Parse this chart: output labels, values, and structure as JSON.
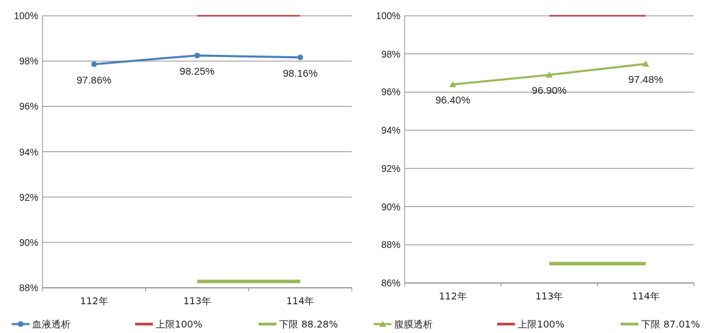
{
  "chart_data": [
    {
      "type": "line",
      "categories": [
        "112年",
        "113年",
        "114年"
      ],
      "ylim": [
        88,
        100
      ],
      "yticks": [
        {
          "value": 88,
          "label": "88%"
        },
        {
          "value": 90,
          "label": "90%"
        },
        {
          "value": 92,
          "label": "92%"
        },
        {
          "value": 94,
          "label": "94%"
        },
        {
          "value": 96,
          "label": "96%"
        },
        {
          "value": 98,
          "label": "98%"
        },
        {
          "value": 100,
          "label": "100%"
        }
      ],
      "grid": "y",
      "legend": "bottom",
      "series": [
        {
          "name": "血液透析",
          "color": "#4a7ebb",
          "marker": "circle",
          "values": [
            97.86,
            98.25,
            98.16
          ],
          "value_labels": [
            "97.86%",
            "98.25%",
            "98.16%"
          ]
        },
        {
          "name": "上限100%",
          "color": "#be4b48",
          "marker": "none",
          "values": [
            null,
            100,
            100
          ]
        },
        {
          "name": "下限 88.28%",
          "color": "#98b954",
          "marker": "none",
          "values": [
            null,
            88.28,
            88.28
          ]
        }
      ]
    },
    {
      "type": "line",
      "categories": [
        "112年",
        "113年",
        "114年"
      ],
      "ylim": [
        86,
        100
      ],
      "yticks": [
        {
          "value": 86,
          "label": "86%"
        },
        {
          "value": 88,
          "label": "88%"
        },
        {
          "value": 90,
          "label": "90%"
        },
        {
          "value": 92,
          "label": "92%"
        },
        {
          "value": 94,
          "label": "94%"
        },
        {
          "value": 96,
          "label": "96%"
        },
        {
          "value": 98,
          "label": "98%"
        },
        {
          "value": 100,
          "label": "100%"
        }
      ],
      "grid": "y",
      "legend": "bottom",
      "series": [
        {
          "name": "腹膜透析",
          "color": "#98b954",
          "marker": "triangle",
          "values": [
            96.4,
            96.9,
            97.48
          ],
          "value_labels": [
            "96.40%",
            "96.90%",
            "97.48%"
          ]
        },
        {
          "name": "上限100%",
          "color": "#be4b48",
          "marker": "none",
          "values": [
            null,
            100,
            100
          ]
        },
        {
          "name": "下限 87.01%",
          "color": "#98b954",
          "marker": "none",
          "values": [
            null,
            87.01,
            87.01
          ]
        }
      ]
    }
  ]
}
